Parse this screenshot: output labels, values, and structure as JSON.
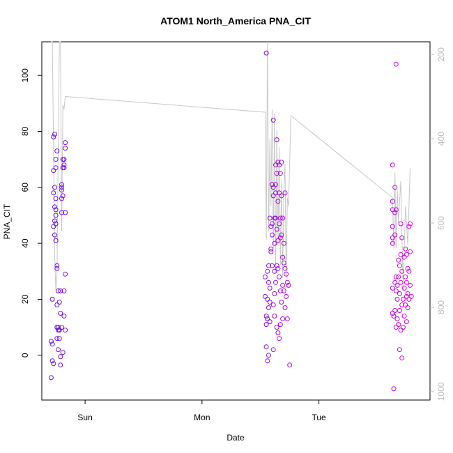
{
  "chart_data": {
    "type": "scatter",
    "title": "ATOM1 North_America PNA_CIT",
    "xlabel": "Date",
    "ylabel": "PNA_CIT",
    "x_ticks": [
      {
        "label": "Sun",
        "value": 1.0
      },
      {
        "label": "Mon",
        "value": 2.0
      },
      {
        "label": "Tue",
        "value": 3.0
      }
    ],
    "xlim": [
      0.63,
      3.95
    ],
    "ylim": [
      -16,
      112
    ],
    "y_ticks": [
      0,
      20,
      40,
      60,
      80,
      100
    ],
    "secondary_y": {
      "label": "",
      "reversed": true,
      "ticks": [
        200,
        400,
        600,
        800,
        1000
      ],
      "lim": [
        1020,
        170
      ],
      "color": "#bdbdbd"
    },
    "series": [
      {
        "color_start": "#5a10e8",
        "color_end": "#e000e0",
        "points": [
          [
            0.71,
            5
          ],
          [
            0.71,
            -8
          ],
          [
            0.72,
            4
          ],
          [
            0.72,
            20
          ],
          [
            0.72,
            -2
          ],
          [
            0.73,
            46
          ],
          [
            0.73,
            66
          ],
          [
            0.73,
            58
          ],
          [
            0.73,
            78
          ],
          [
            0.73,
            -3
          ],
          [
            0.74,
            79
          ],
          [
            0.74,
            60
          ],
          [
            0.74,
            53
          ],
          [
            0.74,
            48
          ],
          [
            0.74,
            43
          ],
          [
            0.75,
            70
          ],
          [
            0.75,
            67
          ],
          [
            0.75,
            56
          ],
          [
            0.75,
            52
          ],
          [
            0.75,
            50
          ],
          [
            0.75,
            47
          ],
          [
            0.75,
            41
          ],
          [
            0.76,
            73
          ],
          [
            0.76,
            31
          ],
          [
            0.76,
            32
          ],
          [
            0.76,
            18
          ],
          [
            0.76,
            10
          ],
          [
            0.76,
            6
          ],
          [
            0.77,
            9
          ],
          [
            0.77,
            10
          ],
          [
            0.77,
            2
          ],
          [
            0.77,
            23
          ],
          [
            0.78,
            19
          ],
          [
            0.78,
            9
          ],
          [
            0.78,
            9
          ],
          [
            0.78,
            6
          ],
          [
            0.79,
            15
          ],
          [
            0.79,
            23
          ],
          [
            0.79,
            -0.5
          ],
          [
            0.79,
            -3.5
          ],
          [
            0.8,
            61
          ],
          [
            0.8,
            59
          ],
          [
            0.8,
            60
          ],
          [
            0.8,
            56
          ],
          [
            0.8,
            51
          ],
          [
            0.8,
            10
          ],
          [
            0.81,
            67
          ],
          [
            0.81,
            70
          ],
          [
            0.81,
            57
          ],
          [
            0.81,
            1
          ],
          [
            0.82,
            70
          ],
          [
            0.82,
            67
          ],
          [
            0.82,
            68
          ],
          [
            0.82,
            23
          ],
          [
            0.82,
            14
          ],
          [
            0.83,
            76
          ],
          [
            0.83,
            74
          ],
          [
            0.83,
            51
          ],
          [
            0.83,
            29
          ],
          [
            0.83,
            9
          ],
          [
            2.55,
            108
          ],
          [
            2.54,
            28
          ],
          [
            2.54,
            21
          ],
          [
            2.55,
            14
          ],
          [
            2.55,
            11
          ],
          [
            2.55,
            3
          ],
          [
            2.56,
            30
          ],
          [
            2.56,
            20
          ],
          [
            2.56,
            13
          ],
          [
            2.56,
            -2
          ],
          [
            2.57,
            32
          ],
          [
            2.57,
            26
          ],
          [
            2.57,
            17
          ],
          [
            2.57,
            0
          ],
          [
            2.58,
            24
          ],
          [
            2.58,
            19
          ],
          [
            2.58,
            12
          ],
          [
            2.58,
            49
          ],
          [
            2.59,
            46
          ],
          [
            2.59,
            37
          ],
          [
            2.59,
            38
          ],
          [
            2.6,
            61
          ],
          [
            2.6,
            43
          ],
          [
            2.6,
            47
          ],
          [
            2.6,
            32
          ],
          [
            2.61,
            84
          ],
          [
            2.61,
            60
          ],
          [
            2.61,
            57
          ],
          [
            2.61,
            18
          ],
          [
            2.61,
            2
          ],
          [
            2.62,
            49
          ],
          [
            2.62,
            40
          ],
          [
            2.62,
            30
          ],
          [
            2.62,
            22
          ],
          [
            2.62,
            14
          ],
          [
            2.63,
            68
          ],
          [
            2.63,
            61
          ],
          [
            2.63,
            58
          ],
          [
            2.63,
            49
          ],
          [
            2.63,
            26
          ],
          [
            2.64,
            77
          ],
          [
            2.64,
            65
          ],
          [
            2.64,
            45
          ],
          [
            2.64,
            32
          ],
          [
            2.64,
            10
          ],
          [
            2.65,
            69
          ],
          [
            2.65,
            55
          ],
          [
            2.65,
            41
          ],
          [
            2.65,
            31
          ],
          [
            2.65,
            8
          ],
          [
            2.66,
            68
          ],
          [
            2.66,
            58
          ],
          [
            2.66,
            47
          ],
          [
            2.66,
            28
          ],
          [
            2.66,
            6
          ],
          [
            2.67,
            65
          ],
          [
            2.67,
            49
          ],
          [
            2.67,
            42
          ],
          [
            2.67,
            23
          ],
          [
            2.67,
            11
          ],
          [
            2.68,
            69
          ],
          [
            2.68,
            57
          ],
          [
            2.68,
            43
          ],
          [
            2.68,
            19
          ],
          [
            2.69,
            49
          ],
          [
            2.69,
            35
          ],
          [
            2.69,
            25
          ],
          [
            2.69,
            13
          ],
          [
            2.7,
            40
          ],
          [
            2.7,
            33
          ],
          [
            2.7,
            23
          ],
          [
            2.71,
            58
          ],
          [
            2.71,
            31
          ],
          [
            2.71,
            17
          ],
          [
            2.72,
            29
          ],
          [
            2.72,
            21
          ],
          [
            2.73,
            26
          ],
          [
            2.73,
            13
          ],
          [
            2.74,
            25
          ],
          [
            2.75,
            -3.5
          ],
          [
            3.63,
            68
          ],
          [
            3.63,
            55
          ],
          [
            3.63,
            52
          ],
          [
            3.63,
            46
          ],
          [
            3.63,
            42
          ],
          [
            3.63,
            40
          ],
          [
            3.63,
            24
          ],
          [
            3.63,
            15
          ],
          [
            3.64,
            14
          ],
          [
            3.64,
            -12
          ],
          [
            3.65,
            60
          ],
          [
            3.65,
            51
          ],
          [
            3.65,
            43
          ],
          [
            3.65,
            26
          ],
          [
            3.65,
            16
          ],
          [
            3.66,
            104
          ],
          [
            3.66,
            52
          ],
          [
            3.66,
            28
          ],
          [
            3.66,
            23
          ],
          [
            3.66,
            10
          ],
          [
            3.67,
            25
          ],
          [
            3.67,
            20
          ],
          [
            3.67,
            13
          ],
          [
            3.68,
            34
          ],
          [
            3.68,
            28
          ],
          [
            3.68,
            11
          ],
          [
            3.69,
            32
          ],
          [
            3.69,
            22
          ],
          [
            3.69,
            16
          ],
          [
            3.69,
            2
          ],
          [
            3.7,
            47
          ],
          [
            3.7,
            36
          ],
          [
            3.7,
            26
          ],
          [
            3.7,
            9
          ],
          [
            3.71,
            42
          ],
          [
            3.71,
            30
          ],
          [
            3.71,
            18
          ],
          [
            3.71,
            -1
          ],
          [
            3.72,
            20
          ],
          [
            3.72,
            10
          ],
          [
            3.73,
            35
          ],
          [
            3.73,
            24
          ],
          [
            3.73,
            14
          ],
          [
            3.74,
            38
          ],
          [
            3.74,
            28
          ],
          [
            3.74,
            18
          ],
          [
            3.75,
            36
          ],
          [
            3.75,
            26
          ],
          [
            3.75,
            21
          ],
          [
            3.75,
            12
          ],
          [
            3.76,
            31
          ],
          [
            3.76,
            22
          ],
          [
            3.76,
            17
          ],
          [
            3.77,
            46
          ],
          [
            3.77,
            30
          ],
          [
            3.77,
            20
          ],
          [
            3.78,
            47
          ],
          [
            3.78,
            37
          ],
          [
            3.78,
            25
          ],
          [
            3.79,
            21
          ]
        ]
      }
    ],
    "line_series": {
      "color": "#c8c8c8",
      "axis": "secondary",
      "points": [
        [
          0.71,
          170
        ],
        [
          0.72,
          170
        ],
        [
          0.73,
          420
        ],
        [
          0.74,
          680
        ],
        [
          0.75,
          760
        ],
        [
          0.76,
          720
        ],
        [
          0.77,
          430
        ],
        [
          0.78,
          170
        ],
        [
          0.79,
          170
        ],
        [
          0.8,
          620
        ],
        [
          0.81,
          320
        ],
        [
          0.82,
          330
        ],
        [
          0.83,
          300
        ],
        [
          0.84,
          300
        ],
        [
          2.54,
          337
        ],
        [
          2.55,
          640
        ],
        [
          2.56,
          170
        ],
        [
          2.57,
          620
        ],
        [
          2.58,
          400
        ],
        [
          2.59,
          560
        ],
        [
          2.6,
          330
        ],
        [
          2.61,
          660
        ],
        [
          2.62,
          340
        ],
        [
          2.63,
          720
        ],
        [
          2.64,
          380
        ],
        [
          2.65,
          650
        ],
        [
          2.66,
          420
        ],
        [
          2.67,
          700
        ],
        [
          2.68,
          500
        ],
        [
          2.69,
          730
        ],
        [
          2.7,
          520
        ],
        [
          2.71,
          460
        ],
        [
          2.72,
          740
        ],
        [
          2.73,
          540
        ],
        [
          2.74,
          560
        ],
        [
          2.76,
          345
        ],
        [
          3.63,
          540
        ],
        [
          3.64,
          660
        ],
        [
          3.65,
          480
        ],
        [
          3.66,
          660
        ],
        [
          3.67,
          520
        ],
        [
          3.68,
          600
        ],
        [
          3.7,
          500
        ],
        [
          3.72,
          760
        ],
        [
          3.74,
          560
        ],
        [
          3.76,
          650
        ],
        [
          3.78,
          470
        ]
      ]
    }
  }
}
